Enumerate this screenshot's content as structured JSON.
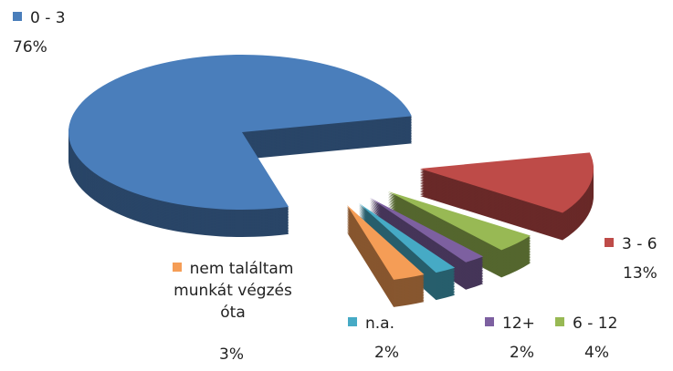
{
  "chart_data": {
    "type": "pie",
    "categories": [
      "0 - 3",
      "3 - 6",
      "6 - 12",
      "12+",
      "n.a.",
      "nem találtam munkát végzés óta"
    ],
    "values": [
      76,
      13,
      4,
      2,
      2,
      3
    ],
    "value_labels": [
      "76%",
      "13%",
      "4%",
      "2%",
      "2%",
      "3%"
    ],
    "colors": [
      "#4a7ebb",
      "#be4b48",
      "#98b954",
      "#7d60a0",
      "#46aac5",
      "#f59d56"
    ]
  }
}
